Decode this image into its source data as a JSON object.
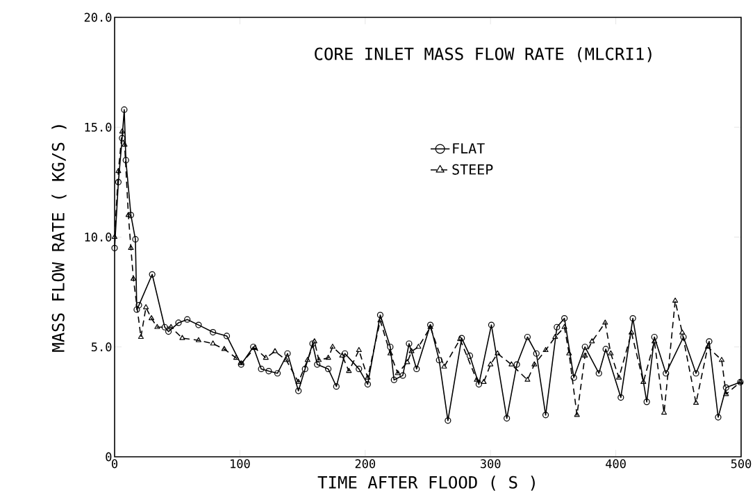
{
  "chart_data": {
    "type": "line",
    "title": "CORE INLET MASS FLOW RATE (MLCRI1)",
    "xlabel": "TIME AFTER FLOOD ( S )",
    "ylabel": "MASS FLOW RATE ( KG/S )",
    "xlim": [
      0,
      500
    ],
    "ylim": [
      0,
      20
    ],
    "xticks": [
      0,
      100,
      200,
      300,
      400,
      500
    ],
    "yticks": [
      0,
      {
        "value": 5,
        "label": "5.0"
      },
      {
        "value": 10,
        "label": "10.0"
      },
      {
        "value": 15,
        "label": "15.0"
      },
      {
        "value": 20,
        "label": "20.0"
      }
    ],
    "legend": "top right",
    "grid": false,
    "series": [
      {
        "name": "FLAT",
        "color": "#000000",
        "marker": "circle",
        "line_style": "solid",
        "x": [
          0,
          3,
          6,
          7.7,
          9,
          13,
          16.6,
          17.7,
          19.4,
          30,
          40,
          43,
          51,
          58,
          67,
          78.5,
          89.5,
          101,
          110.7,
          117,
          123,
          130,
          138,
          146.7,
          152,
          158,
          161.7,
          170.5,
          177,
          183.8,
          195,
          202,
          212,
          220,
          223,
          230,
          235,
          241,
          252,
          259,
          266,
          277,
          283.5,
          290.7,
          300.7,
          313,
          321,
          329.5,
          336.6,
          344,
          353,
          359,
          366.5,
          375.4,
          386.5,
          392,
          404,
          413.6,
          424.7,
          430.8,
          440,
          454,
          464,
          474.5,
          481.7,
          488,
          499.4
        ],
        "values": [
          9.5,
          12.5,
          14.5,
          15.8,
          13.5,
          11,
          9.9,
          6.7,
          6.9,
          8.3,
          5.9,
          5.7,
          6.1,
          6.25,
          6.0,
          5.67,
          5.5,
          4.2,
          5.0,
          4.0,
          3.9,
          3.8,
          4.7,
          3.0,
          4.0,
          5.15,
          4.2,
          4.0,
          3.2,
          4.7,
          4.0,
          3.3,
          6.45,
          5.0,
          3.5,
          3.7,
          5.15,
          4.0,
          6.0,
          4.4,
          1.65,
          5.4,
          4.6,
          3.3,
          6.0,
          1.75,
          4.2,
          5.45,
          4.7,
          1.9,
          5.9,
          6.3,
          3.6,
          5.0,
          3.8,
          4.9,
          2.7,
          6.3,
          2.5,
          5.45,
          3.8,
          5.45,
          3.8,
          5.25,
          1.8,
          3.15,
          3.4
        ]
      },
      {
        "name": "STEEP",
        "color": "#000000",
        "marker": "triangle",
        "line_style": "dashed",
        "x": [
          0,
          3,
          6,
          8,
          11,
          13,
          15,
          21,
          25,
          29.4,
          34,
          45,
          54,
          67,
          78.5,
          87.5,
          97,
          101,
          112,
          120.7,
          128,
          137,
          146.7,
          154,
          159.5,
          163,
          170.5,
          174,
          181.6,
          187,
          195,
          202,
          212,
          220,
          226,
          233.6,
          237,
          242.5,
          252,
          263,
          275.7,
          289,
          294.6,
          300,
          305.6,
          316.7,
          329.5,
          335,
          344,
          351.6,
          359,
          362.7,
          369,
          375.4,
          381,
          391.5,
          396,
          402.5,
          412.5,
          422,
          430.8,
          438.5,
          447.4,
          453,
          464,
          473.4,
          484.5,
          488,
          499.4
        ],
        "values": [
          10.0,
          13,
          14.8,
          14.2,
          11,
          9.5,
          8.1,
          5.45,
          6.8,
          6.3,
          5.9,
          5.9,
          5.4,
          5.3,
          5.15,
          4.9,
          4.5,
          4.25,
          4.95,
          4.5,
          4.8,
          4.4,
          3.4,
          4.4,
          5.25,
          4.4,
          4.5,
          5.0,
          4.6,
          3.9,
          4.85,
          3.6,
          6.2,
          4.7,
          3.8,
          4.3,
          4.8,
          5.0,
          5.9,
          4.1,
          5.35,
          3.5,
          3.4,
          4.2,
          4.7,
          4.2,
          3.5,
          4.2,
          4.85,
          5.45,
          5.9,
          4.7,
          1.9,
          4.6,
          5.25,
          6.1,
          4.7,
          3.6,
          5.65,
          3.4,
          5.25,
          2.0,
          7.1,
          5.65,
          2.45,
          5.0,
          4.4,
          2.85,
          3.4
        ]
      }
    ]
  }
}
